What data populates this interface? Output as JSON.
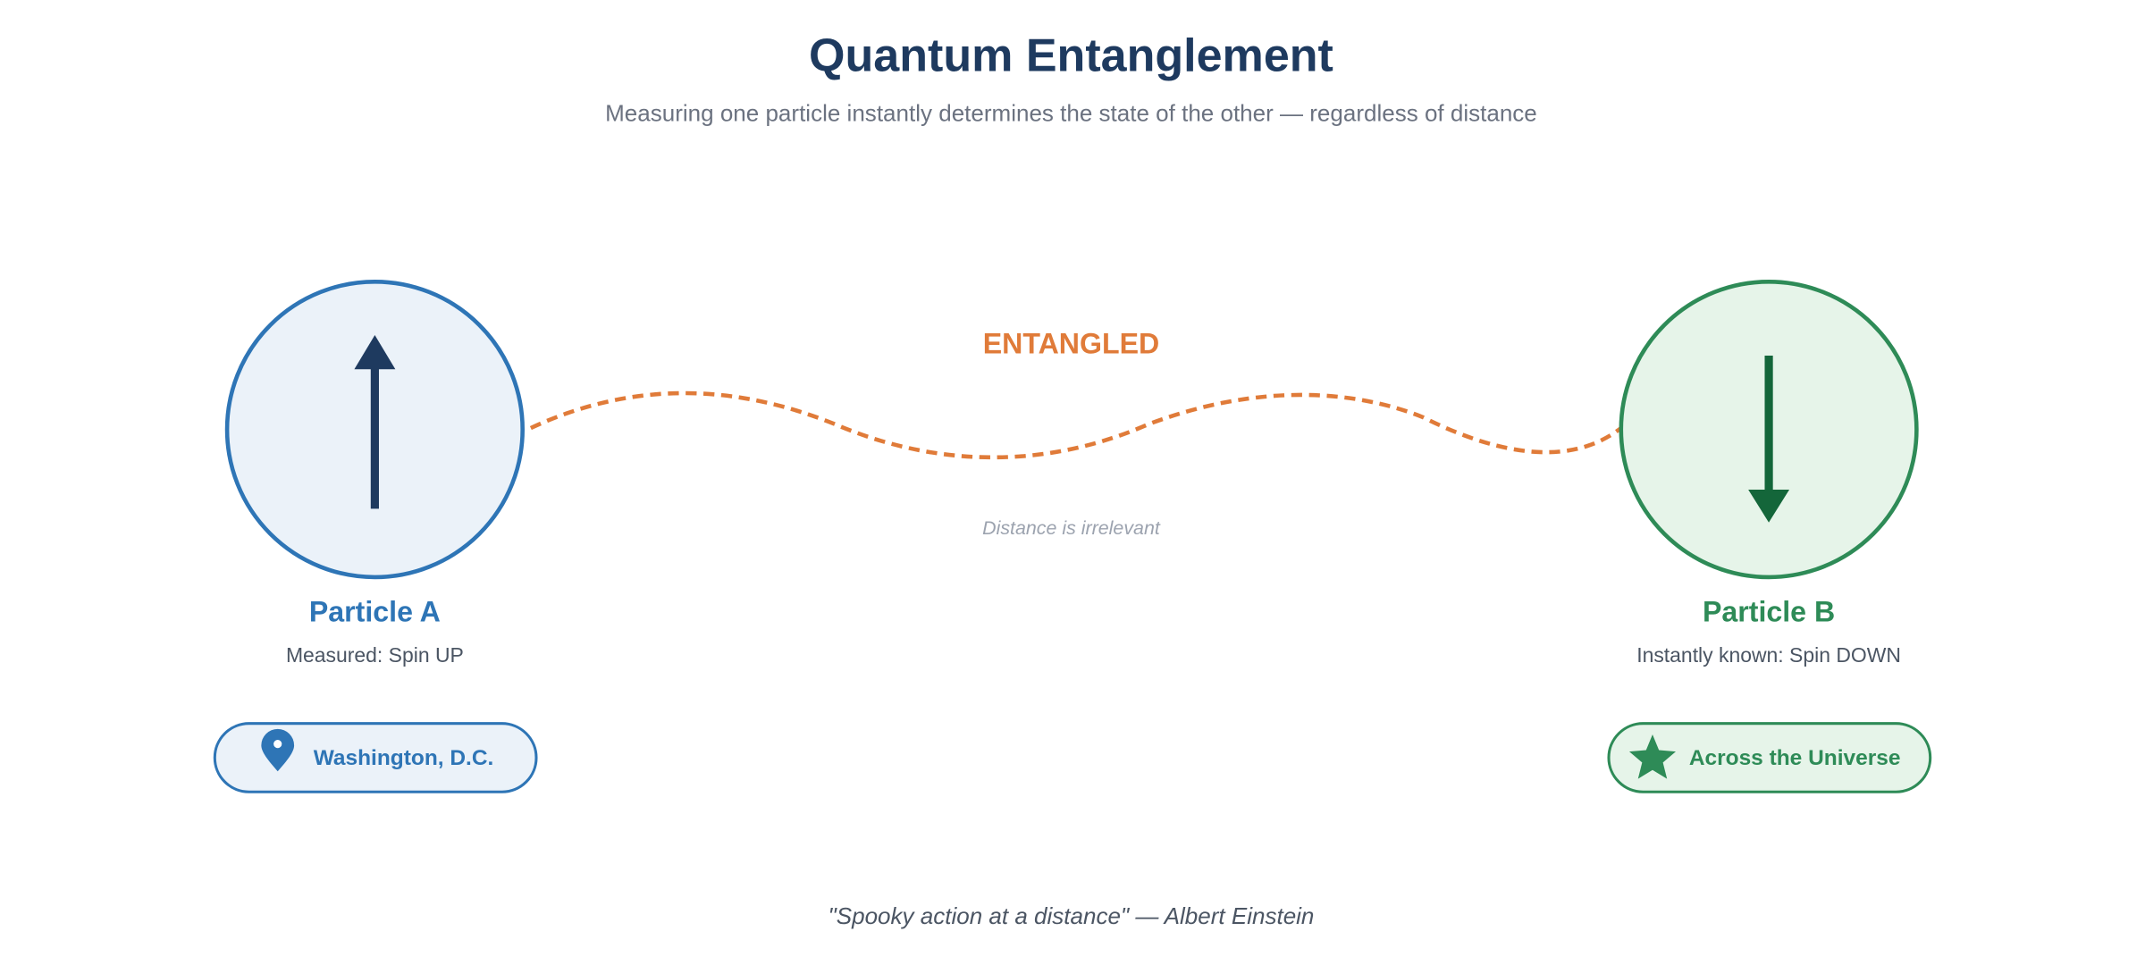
{
  "header": {
    "title": "Quantum Entanglement",
    "subtitle": "Measuring one particle instantly determines the state of the other — regardless of distance"
  },
  "connection": {
    "label": "ENTANGLED",
    "note": "Distance is irrelevant"
  },
  "particles": [
    {
      "name": "Particle A",
      "state": "Measured: Spin UP",
      "location": "Washington, D.C."
    },
    {
      "name": "Particle B",
      "state": "Instantly known: Spin DOWN",
      "location": "Across the Universe"
    }
  ],
  "footer": {
    "quote": "\"Spooky action at a distance\" — Albert Einstein"
  }
}
